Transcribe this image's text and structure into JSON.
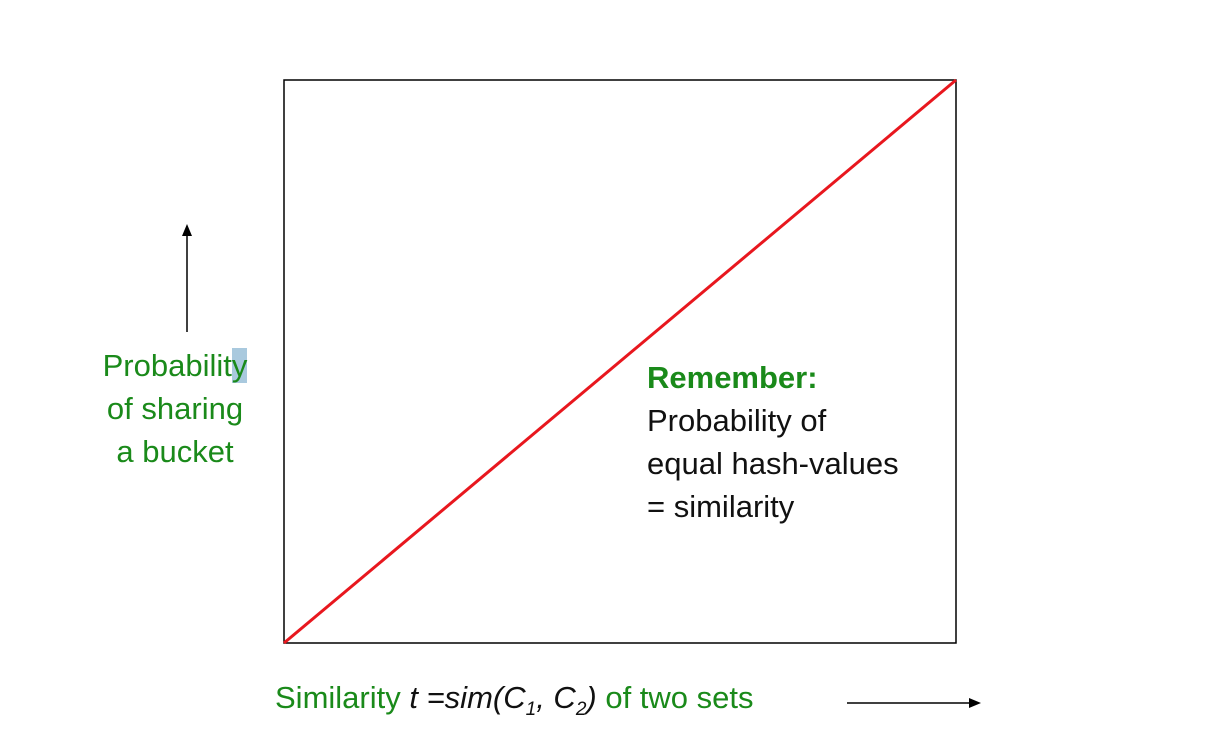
{
  "chart_data": {
    "type": "line",
    "series": [
      {
        "x": [
          0,
          1
        ],
        "y": [
          0,
          1
        ],
        "color": "#e8171e"
      }
    ],
    "xlim": [
      0,
      1
    ],
    "ylim": [
      0,
      1
    ],
    "grid": false,
    "ylabel": {
      "lines": [
        "Probabilit",
        "y",
        "of sharing",
        "a bucket"
      ]
    },
    "xlabel": {
      "prefix": "Similarity ",
      "t": "t",
      "equals": " =sim(",
      "c1": "C",
      "s1": "1",
      "comma": ", ",
      "c2": "C",
      "s2": "2",
      "close": ")",
      "suffix": " of two sets"
    },
    "annotation": {
      "heading": "Remember:",
      "lines": [
        "Probability of",
        "equal hash-values",
        "= similarity"
      ]
    }
  },
  "colors": {
    "label_green": "#1a8a1a",
    "line_red": "#e8171e",
    "frame": "#000000"
  }
}
